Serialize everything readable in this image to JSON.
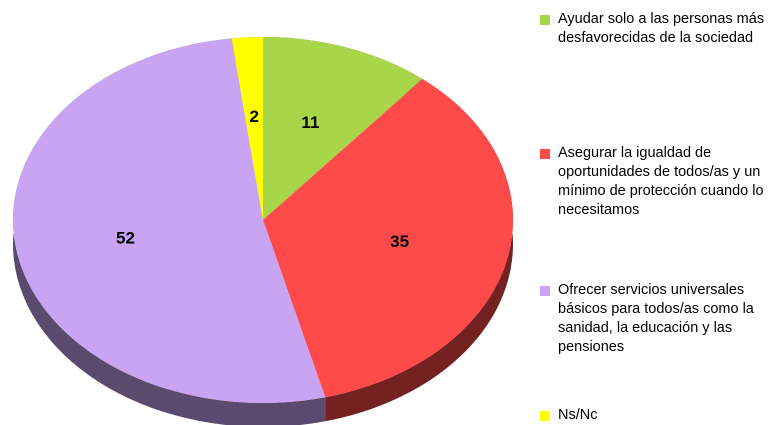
{
  "chart_data": {
    "type": "pie",
    "categories": [
      "Ayudar solo a las personas más desfavorecidas de la sociedad",
      "Asegurar la igualdad de oportunidades de todos/as y un mínimo de protección cuando lo necesitamos",
      "Ofrecer servicios universales básicos para todos/as como la sanidad, la educación y las pensiones",
      "Ns/Nc"
    ],
    "values": [
      11,
      35,
      52,
      2
    ],
    "colors": [
      "#a8d64a",
      "#ff4a4a",
      "#c9a4f2",
      "#ffff00"
    ],
    "legend": "right"
  }
}
